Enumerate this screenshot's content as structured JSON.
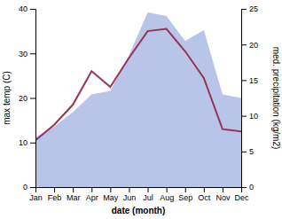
{
  "chart_data": {
    "type": "line",
    "categories": [
      "Jan",
      "Feb",
      "Mar",
      "Apr",
      "May",
      "Jun",
      "Jul",
      "Aug",
      "Sep",
      "Oct",
      "Nov",
      "Dec"
    ],
    "series": [
      {
        "type": "area",
        "axis": "y2",
        "color": "#b8c4e8",
        "values": [
          7.0,
          8.5,
          10.5,
          13.0,
          13.5,
          18.5,
          24.5,
          24.0,
          20.5,
          22.0,
          13.0,
          12.5
        ]
      },
      {
        "type": "line",
        "color": "#993355",
        "values": [
          10.5,
          14.0,
          18.5,
          26.0,
          22.5,
          29.0,
          35.0,
          35.5,
          30.5,
          24.5,
          13.0,
          12.5
        ]
      }
    ],
    "xlabel": "date (month)",
    "ylabel": "max temp (C)",
    "y2label": "med. precipitation (kg/m2)",
    "ylim": [
      0,
      40
    ],
    "yticks": [
      0,
      10,
      20,
      30,
      40
    ],
    "y2lim": [
      0,
      25
    ],
    "y2ticks": [
      0,
      5,
      10,
      15,
      20,
      25
    ],
    "grid": false
  }
}
